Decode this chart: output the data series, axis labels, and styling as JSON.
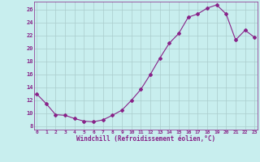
{
  "x": [
    0,
    1,
    2,
    3,
    4,
    5,
    6,
    7,
    8,
    9,
    10,
    11,
    12,
    13,
    14,
    15,
    16,
    17,
    18,
    19,
    20,
    21,
    22,
    23
  ],
  "y": [
    13.0,
    11.5,
    9.8,
    9.7,
    9.2,
    8.8,
    8.7,
    9.0,
    9.7,
    10.5,
    12.0,
    13.7,
    16.0,
    18.5,
    20.8,
    22.3,
    24.8,
    25.3,
    26.2,
    26.7,
    25.3,
    21.3,
    22.8,
    21.7
  ],
  "line_color": "#882288",
  "marker": "D",
  "marker_size": 2,
  "bg_color": "#c8eeee",
  "grid_color": "#aacccc",
  "xlabel": "Windchill (Refroidissement éolien,°C)",
  "ylabel_ticks": [
    8,
    10,
    12,
    14,
    16,
    18,
    20,
    22,
    24,
    26
  ],
  "xticks": [
    0,
    1,
    2,
    3,
    4,
    5,
    6,
    7,
    8,
    9,
    10,
    11,
    12,
    13,
    14,
    15,
    16,
    17,
    18,
    19,
    20,
    21,
    22,
    23
  ],
  "xlim": [
    -0.3,
    23.3
  ],
  "ylim": [
    7.5,
    27.2
  ],
  "font_color": "#882288"
}
